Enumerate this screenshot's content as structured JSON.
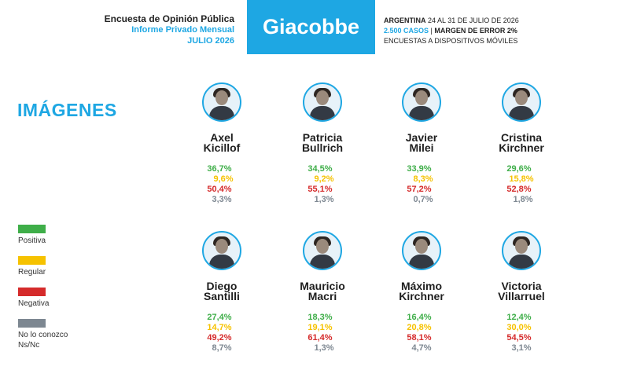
{
  "header": {
    "title": "Encuesta de Opinión Pública",
    "subtitle": "Informe Privado Mensual",
    "date": "JULIO 2026",
    "brand": "Giacobbe",
    "country": "ARGENTINA",
    "period": "24 AL 31 DE JULIO DE 2026",
    "cases": "2.500 CASOS",
    "margin": "MARGEN DE ERROR 2%",
    "method": "ENCUESTAS A DISPOSITIVOS MÓVILES"
  },
  "section_title": "IMÁGENES",
  "colors": {
    "positiva": "#3fae49",
    "regular": "#f6c200",
    "negativa": "#d52b2b",
    "no_conozco": "#7d8791",
    "accent": "#1ea7e3"
  },
  "legend": [
    {
      "label": "Positiva",
      "color": "#3fae49"
    },
    {
      "label": "Regular",
      "color": "#f6c200"
    },
    {
      "label": "Negativa",
      "color": "#d52b2b"
    },
    {
      "label": "No lo conozco",
      "label2": "Ns/Nc",
      "color": "#7d8791"
    }
  ],
  "candidates": [
    {
      "first": "Axel",
      "last": "Kicillof",
      "positiva": "36,7%",
      "regular": "9,6%",
      "negativa": "50,4%",
      "no_conozco": "3,3%"
    },
    {
      "first": "Patricia",
      "last": "Bullrich",
      "positiva": "34,5%",
      "regular": "9,2%",
      "negativa": "55,1%",
      "no_conozco": "1,3%"
    },
    {
      "first": "Javier",
      "last": "Milei",
      "positiva": "33,9%",
      "regular": "8,3%",
      "negativa": "57,2%",
      "no_conozco": "0,7%"
    },
    {
      "first": "Cristina",
      "last": "Kirchner",
      "positiva": "29,6%",
      "regular": "15,8%",
      "negativa": "52,8%",
      "no_conozco": "1,8%"
    },
    {
      "first": "Diego",
      "last": "Santilli",
      "positiva": "27,4%",
      "regular": "14,7%",
      "negativa": "49,2%",
      "no_conozco": "8,7%"
    },
    {
      "first": "Mauricio",
      "last": "Macri",
      "positiva": "18,3%",
      "regular": "19,1%",
      "negativa": "61,4%",
      "no_conozco": "1,3%"
    },
    {
      "first": "Máximo",
      "last": "Kirchner",
      "positiva": "16,4%",
      "regular": "20,8%",
      "negativa": "58,1%",
      "no_conozco": "4,7%"
    },
    {
      "first": "Victoria",
      "last": "Villarruel",
      "positiva": "12,4%",
      "regular": "30,0%",
      "negativa": "54,5%",
      "no_conozco": "3,1%"
    }
  ]
}
